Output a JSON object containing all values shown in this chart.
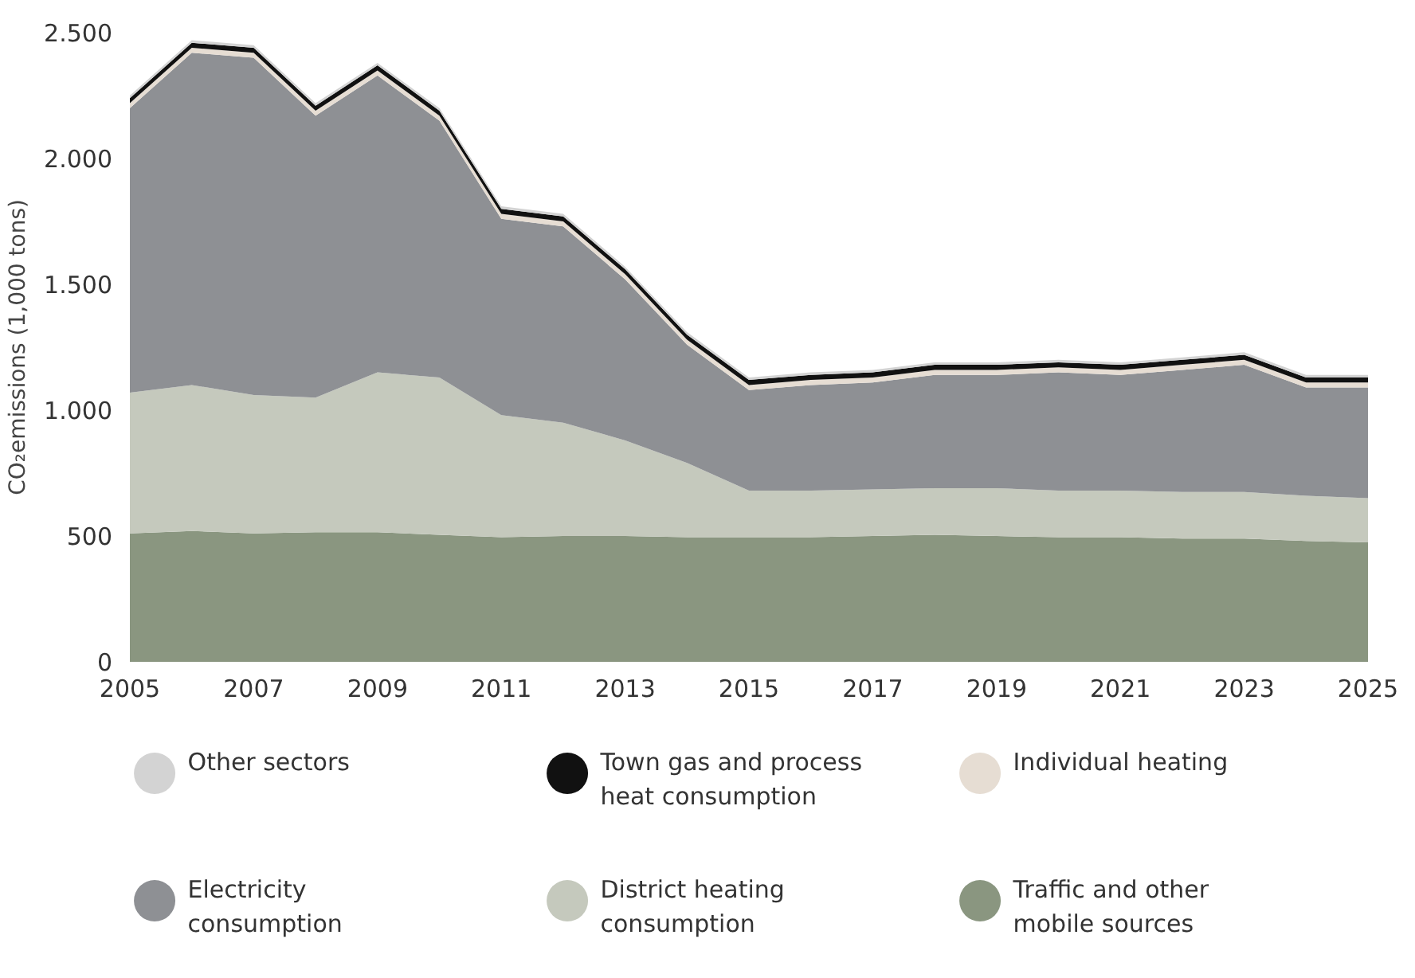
{
  "chart_data": {
    "type": "area",
    "stacked": true,
    "ylabel": "CO₂emissions (1,000 tons)",
    "x": [
      2005,
      2006,
      2007,
      2008,
      2009,
      2010,
      2011,
      2012,
      2013,
      2014,
      2015,
      2016,
      2017,
      2018,
      2019,
      2020,
      2021,
      2022,
      2023,
      2024,
      2025
    ],
    "xlim": [
      2005,
      2025
    ],
    "xticks": [
      2005,
      2007,
      2009,
      2011,
      2013,
      2015,
      2017,
      2019,
      2021,
      2023,
      2025
    ],
    "ylim": [
      0,
      2500
    ],
    "yticks": [
      0,
      500,
      {
        "value": 1000,
        "label": "1.000"
      },
      {
        "value": 1500,
        "label": "1.500"
      },
      {
        "value": 2000,
        "label": "2.000"
      },
      {
        "value": 2500,
        "label": "2.500"
      }
    ],
    "grid": false,
    "legend": "bottom",
    "series": [
      {
        "name": "Other sectors",
        "color": "#d3d3d3",
        "values": [
          10,
          10,
          10,
          10,
          10,
          10,
          10,
          10,
          10,
          10,
          10,
          10,
          10,
          10,
          10,
          10,
          10,
          10,
          10,
          10,
          10
        ]
      },
      {
        "name": "Town gas and process heat consumption",
        "color": "#111111",
        "values": [
          20,
          20,
          20,
          20,
          20,
          20,
          20,
          20,
          20,
          20,
          20,
          20,
          20,
          20,
          20,
          20,
          20,
          20,
          20,
          20,
          20
        ]
      },
      {
        "name": "Individual heating",
        "color": "#e6ddd3",
        "values": [
          20,
          20,
          20,
          20,
          20,
          20,
          20,
          20,
          20,
          20,
          20,
          20,
          20,
          20,
          20,
          20,
          20,
          20,
          20,
          20,
          20
        ]
      },
      {
        "name": "Electricity consumption",
        "color": "#8e9094",
        "values": [
          1130,
          1320,
          1340,
          1120,
          1180,
          1020,
          780,
          780,
          640,
          470,
          400,
          420,
          425,
          450,
          450,
          470,
          460,
          485,
          505,
          430,
          440
        ]
      },
      {
        "name": "District heating consumption",
        "color": "#c5c9bd",
        "values": [
          560,
          580,
          550,
          535,
          635,
          625,
          485,
          450,
          380,
          295,
          185,
          185,
          185,
          185,
          190,
          185,
          185,
          185,
          185,
          180,
          175
        ]
      },
      {
        "name": "Traffic and other mobile sources",
        "color": "#8a9680",
        "values": [
          510,
          520,
          510,
          515,
          515,
          505,
          495,
          500,
          500,
          495,
          495,
          495,
          500,
          505,
          500,
          495,
          495,
          490,
          490,
          480,
          475
        ]
      }
    ]
  }
}
